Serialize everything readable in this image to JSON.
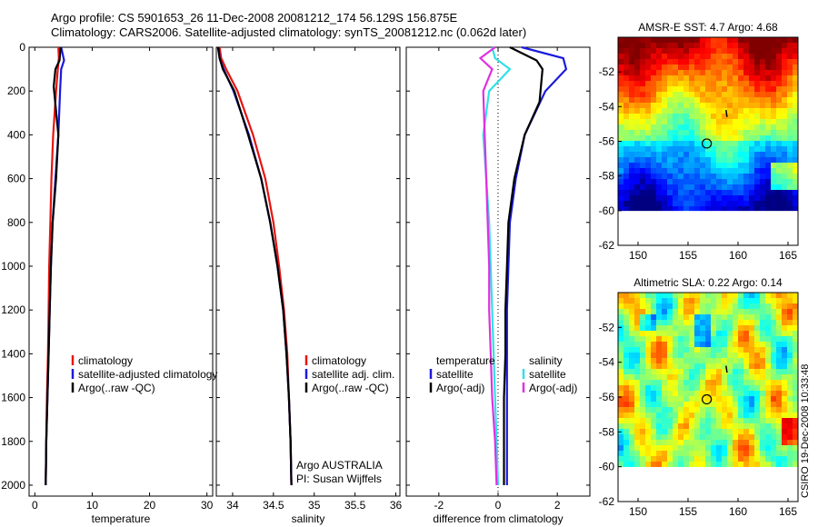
{
  "header": {
    "line1": "Argo profile: CS 5901653_26 11-Dec-2008 20081212_174 56.129S 156.875E",
    "line2": "Climatology: CARS2006. Satellite-adjusted climatology: synTS_20081212.nc (0.062d later)"
  },
  "footer_credit": "CSIRO 19-Dec-2008 10:33:48",
  "colors": {
    "climatology": "#e8140f",
    "satellite": "#1a1adc",
    "argo": "#000000",
    "cyan": "#30e0e8",
    "magenta": "#e030e0"
  },
  "chart_data": [
    {
      "type": "line",
      "xlabel": "temperature",
      "ylabel": "",
      "xlim": [
        -1,
        31
      ],
      "ylim": [
        2050,
        0
      ],
      "xticks": [
        0,
        10,
        20,
        30
      ],
      "yticks": [
        0,
        200,
        400,
        600,
        800,
        1000,
        1200,
        1400,
        1600,
        1800,
        2000
      ],
      "legend": {
        "placement": "lower-right",
        "entries": [
          {
            "label": "climatology",
            "color": "#e8140f"
          },
          {
            "label": "satellite-adjusted climatology",
            "color": "#1a1adc"
          },
          {
            "label": "Argo(..raw -QC)",
            "color": "#000000"
          }
        ]
      },
      "series": [
        {
          "color": "#e8140f",
          "x": [
            4.1,
            4.2,
            4.0,
            3.7,
            3.2,
            2.9,
            2.7,
            2.5,
            2.4,
            2.3,
            2.1,
            2.0,
            1.9
          ],
          "y": [
            0,
            50,
            100,
            200,
            400,
            600,
            800,
            1000,
            1200,
            1400,
            1600,
            1800,
            2000
          ]
        },
        {
          "color": "#1a1adc",
          "x": [
            4.6,
            5.1,
            4.6,
            4.4,
            4.1,
            3.6,
            3.1,
            2.8,
            2.6,
            2.4,
            2.2,
            2.0,
            1.9
          ],
          "y": [
            0,
            60,
            100,
            200,
            400,
            600,
            800,
            1000,
            1200,
            1400,
            1600,
            1800,
            2000
          ]
        },
        {
          "color": "#000000",
          "x": [
            4.5,
            4.3,
            3.6,
            3.3,
            4.1,
            3.7,
            3.1,
            2.8,
            2.6,
            2.4,
            2.2,
            2.0,
            1.9
          ],
          "y": [
            0,
            60,
            100,
            180,
            400,
            600,
            800,
            1000,
            1200,
            1400,
            1600,
            1800,
            2000
          ]
        }
      ]
    },
    {
      "type": "line",
      "xlabel": "salinity",
      "xlim": [
        33.8,
        36.05
      ],
      "ylim": [
        2050,
        0
      ],
      "xticks": [
        34,
        34.5,
        35,
        35.5,
        36
      ],
      "legend": {
        "placement": "lower-right",
        "entries": [
          {
            "label": "climatology",
            "color": "#e8140f"
          },
          {
            "label": "satellite adj. clim.",
            "color": "#1a1adc"
          },
          {
            "label": "Argo(..raw -QC)",
            "color": "#000000"
          }
        ]
      },
      "annotations": [
        "Argo AUSTRALIA",
        "PI: Susan Wijffels"
      ],
      "series": [
        {
          "color": "#e8140f",
          "x": [
            33.84,
            33.86,
            33.92,
            34.06,
            34.25,
            34.4,
            34.5,
            34.57,
            34.63,
            34.67,
            34.69,
            34.71,
            34.72
          ],
          "y": [
            0,
            50,
            100,
            200,
            400,
            600,
            800,
            1000,
            1200,
            1400,
            1600,
            1800,
            2000
          ]
        },
        {
          "color": "#1a1adc",
          "x": [
            33.83,
            33.84,
            33.89,
            34.01,
            34.2,
            34.35,
            34.46,
            34.55,
            34.62,
            34.66,
            34.69,
            34.71,
            34.72
          ],
          "y": [
            0,
            50,
            100,
            200,
            400,
            600,
            800,
            1000,
            1200,
            1400,
            1600,
            1800,
            2000
          ]
        },
        {
          "color": "#000000",
          "x": [
            33.82,
            33.84,
            33.88,
            34.02,
            34.19,
            34.35,
            34.46,
            34.55,
            34.62,
            34.66,
            34.69,
            34.71,
            34.72
          ],
          "y": [
            0,
            50,
            100,
            200,
            400,
            600,
            800,
            1000,
            1200,
            1400,
            1600,
            1800,
            2000
          ]
        }
      ]
    },
    {
      "type": "line",
      "xlabel": "difference from climatology",
      "xlim": [
        -3.1,
        3.1
      ],
      "ylim": [
        2050,
        0
      ],
      "xticks": [
        -2,
        0,
        2
      ],
      "legend": {
        "placement": "lower",
        "entries": [
          {
            "label": "temperature",
            "color": ""
          },
          {
            "label": "satellite",
            "color": "#1a1adc"
          },
          {
            "label": "Argo(-adj)",
            "color": "#000000"
          },
          {
            "label": "salinity",
            "color": ""
          },
          {
            "label": "satellite",
            "color": "#30e0e8"
          },
          {
            "label": "Argo(-adj)",
            "color": "#e030e0"
          }
        ]
      },
      "series": [
        {
          "name": "temperature satellite",
          "color": "#1a1adc",
          "x": [
            0.8,
            2.2,
            2.3,
            1.6,
            0.9,
            0.6,
            0.4,
            0.35,
            0.3,
            0.3,
            0.3,
            0.3,
            0.3
          ],
          "y": [
            0,
            50,
            100,
            200,
            400,
            600,
            800,
            1000,
            1200,
            1400,
            1600,
            1800,
            2000
          ]
        },
        {
          "name": "temperature Argo(-adj)",
          "color": "#000000",
          "x": [
            0.4,
            1.3,
            1.5,
            1.4,
            0.9,
            0.55,
            0.35,
            0.3,
            0.25,
            0.25,
            0.2,
            0.2,
            0.2
          ],
          "y": [
            0,
            60,
            100,
            250,
            400,
            600,
            800,
            1000,
            1200,
            1400,
            1600,
            1800,
            2000
          ]
        },
        {
          "name": "salinity satellite",
          "color": "#30e0e8",
          "x": [
            -0.2,
            -0.1,
            0.4,
            -0.3,
            -0.5,
            -0.4,
            -0.3,
            -0.25,
            -0.2,
            -0.15,
            -0.1,
            -0.05,
            0.0
          ],
          "y": [
            0,
            50,
            100,
            200,
            400,
            600,
            800,
            1000,
            1200,
            1400,
            1600,
            1800,
            2000
          ]
        },
        {
          "name": "salinity Argo(-adj)",
          "color": "#e030e0",
          "x": [
            -0.1,
            -0.6,
            -0.2,
            -0.5,
            -0.45,
            -0.4,
            -0.35,
            -0.3,
            -0.3,
            -0.25,
            -0.2,
            -0.1,
            -0.05
          ],
          "y": [
            0,
            50,
            100,
            200,
            400,
            600,
            800,
            1000,
            1200,
            1400,
            1600,
            1800,
            2000
          ]
        }
      ]
    },
    {
      "type": "heatmap",
      "title": "AMSR-E SST: 4.7  Argo: 4.68",
      "xlim": [
        148,
        166
      ],
      "ylim": [
        -62,
        -50
      ],
      "xticks": [
        150,
        155,
        160,
        165
      ],
      "yticks": [
        -52,
        -54,
        -56,
        -58,
        -60,
        -62
      ],
      "data_extent_lat": [
        -60,
        -50
      ],
      "float_position": {
        "lon": 156.875,
        "lat": -56.129
      }
    },
    {
      "type": "heatmap",
      "title": "Altimetric SLA: 0.22  Argo: 0.14",
      "xlim": [
        148,
        166
      ],
      "ylim": [
        -62,
        -50
      ],
      "xticks": [
        150,
        155,
        160,
        165
      ],
      "yticks": [
        -52,
        -54,
        -56,
        -58,
        -60,
        -62
      ],
      "data_extent_lat": [
        -60,
        -50
      ],
      "float_position": {
        "lon": 156.875,
        "lat": -56.129
      }
    }
  ]
}
